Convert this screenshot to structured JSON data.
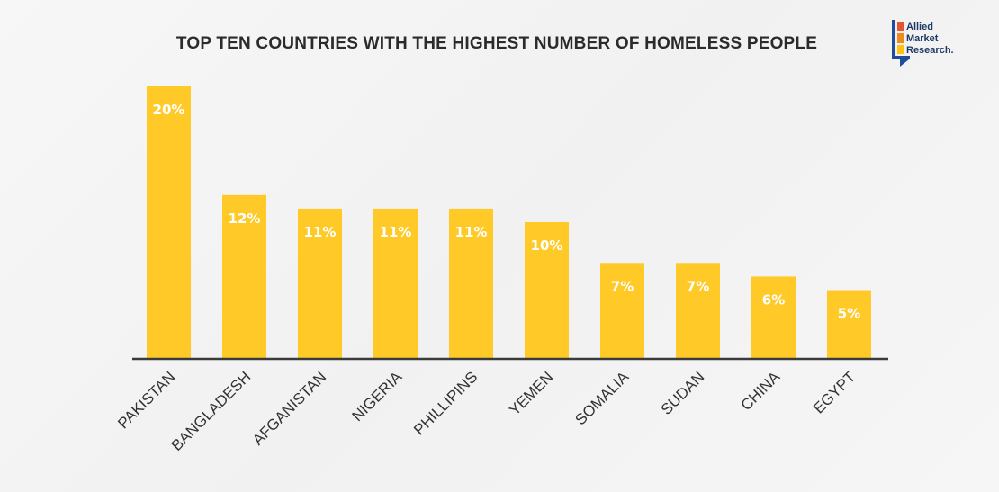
{
  "logo": {
    "lines": [
      "Allied",
      "Market",
      "Research."
    ]
  },
  "colors": {
    "bar": "#ffca28",
    "axis": "#3a3a3a",
    "logo_orange": "#f08a1c",
    "logo_yellow": "#ffc20e",
    "logo_red": "#e4572e",
    "logo_blue": "#1d4e9e"
  },
  "chart_data": {
    "type": "bar",
    "title": "TOP TEN COUNTRIES WITH THE HIGHEST NUMBER OF HOMELESS PEOPLE",
    "categories": [
      "PAKISTAN",
      "BANGLADESH",
      "AFGANISTAN",
      "NIGERIA",
      "PHILLIPINS",
      "YEMEN",
      "SOMALIA",
      "SUDAN",
      "CHINA",
      "EGYPT"
    ],
    "values": [
      20,
      12,
      11,
      11,
      11,
      10,
      7,
      7,
      6,
      5
    ],
    "data_labels": [
      "20%",
      "12%",
      "11%",
      "11%",
      "11%",
      "10%",
      "7%",
      "7%",
      "6%",
      "5%"
    ],
    "xlabel": "",
    "ylabel": "",
    "ylim": [
      0,
      20
    ],
    "grid": false,
    "legend": "none"
  }
}
